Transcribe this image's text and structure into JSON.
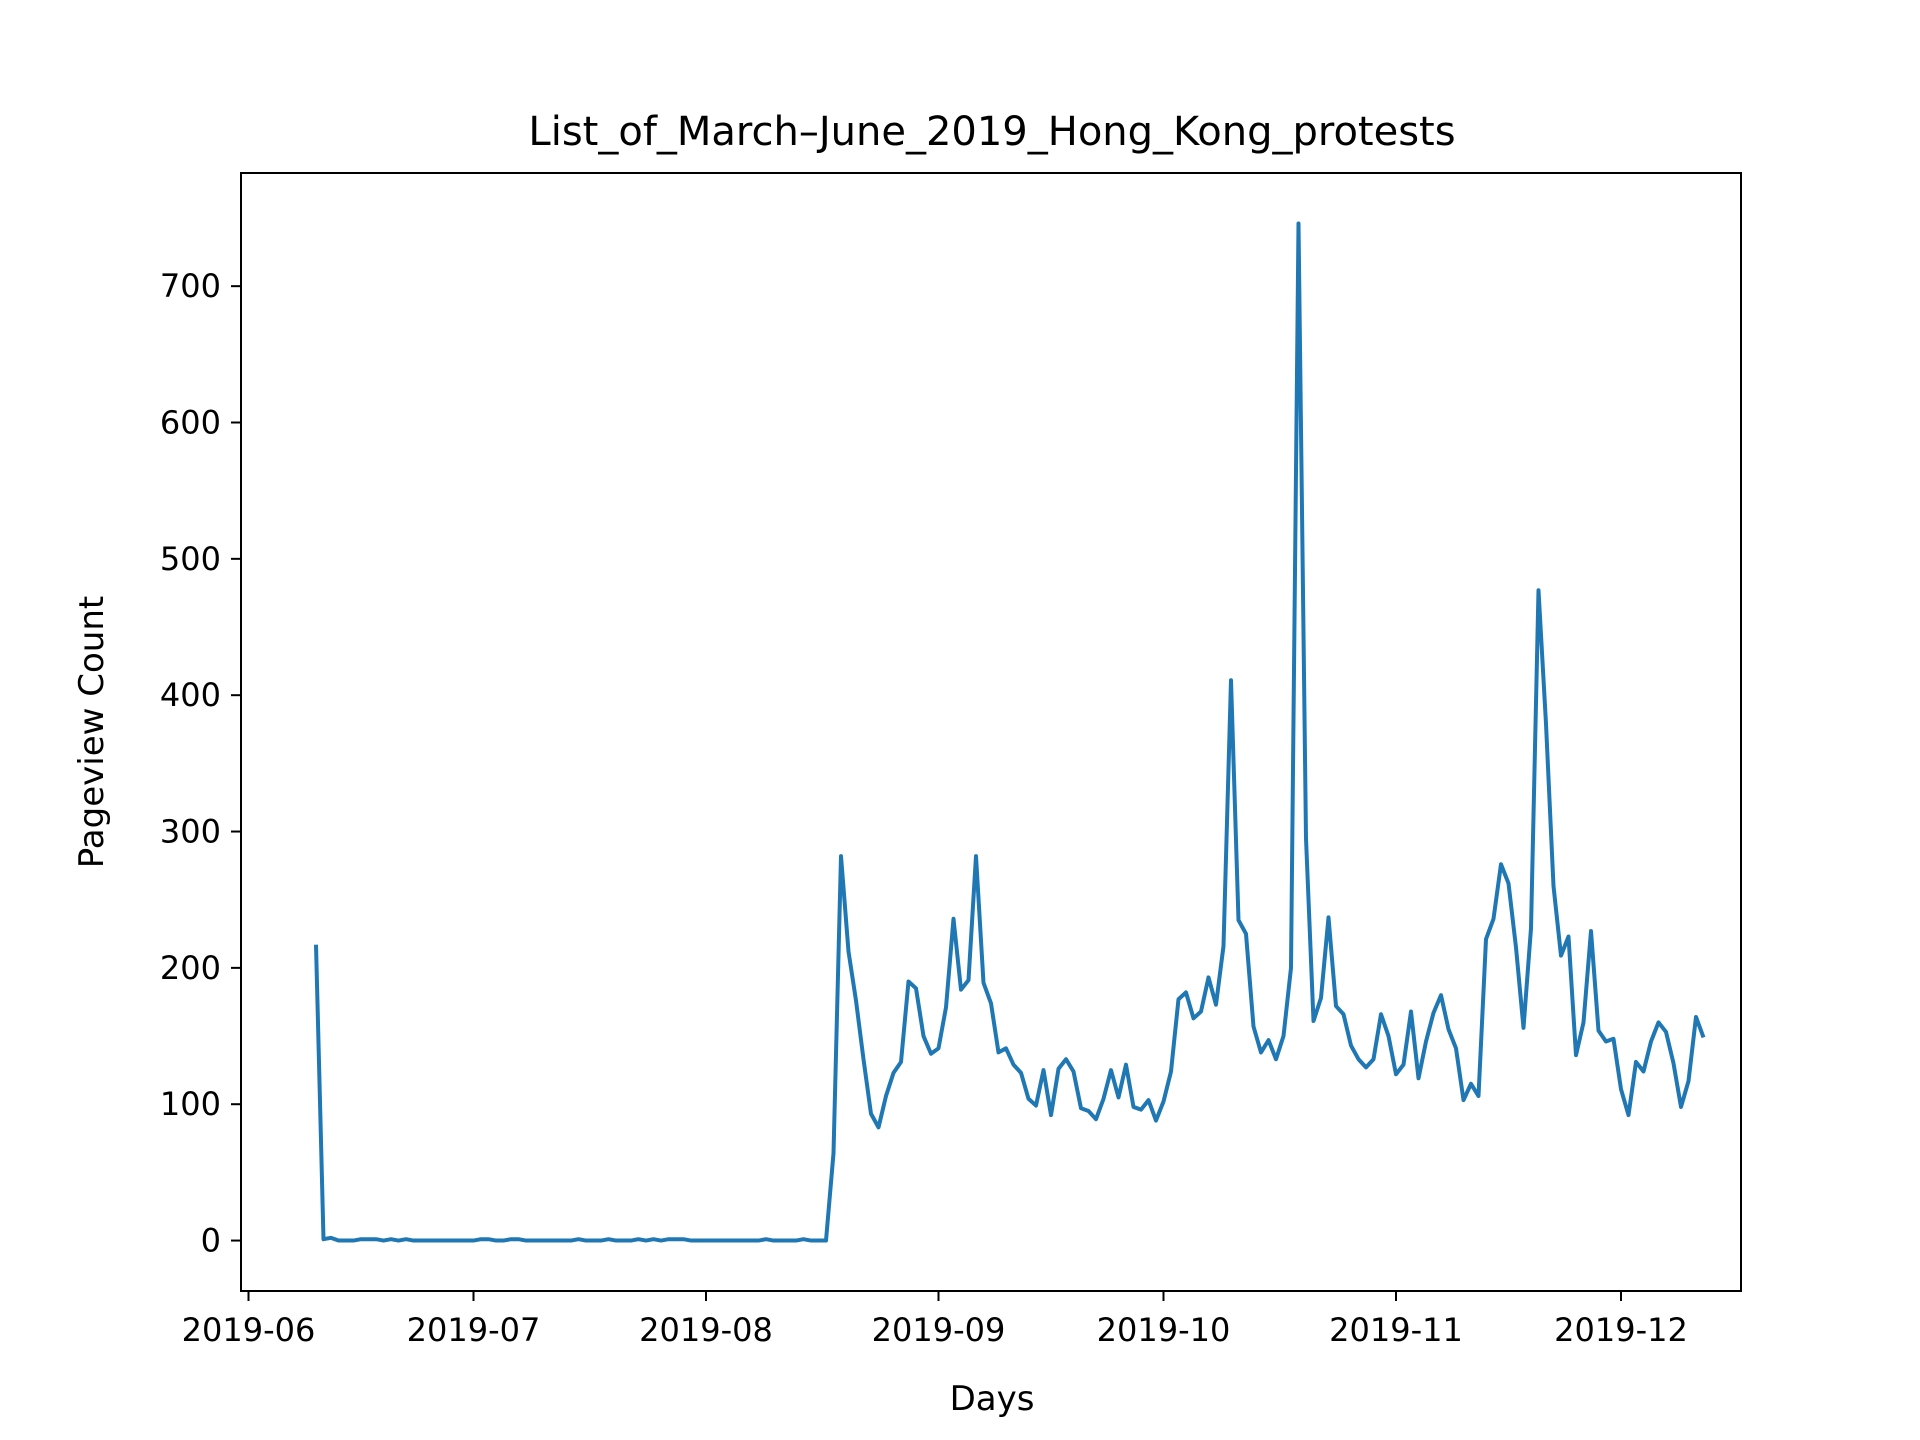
{
  "chart_data": {
    "type": "line",
    "title": "List_of_March–June_2019_Hong_Kong_protests",
    "xlabel": "Days",
    "ylabel": "Pageview Count",
    "x_ticks": [
      "2019-06",
      "2019-07",
      "2019-08",
      "2019-09",
      "2019-10",
      "2019-11",
      "2019-12"
    ],
    "y_ticks": [
      0,
      100,
      200,
      300,
      400,
      500,
      600,
      700
    ],
    "xlim": [
      "2019-05-31",
      "2019-12-17"
    ],
    "ylim": [
      -37,
      783
    ],
    "grid": false,
    "line_color": "#1f77b4",
    "series": [
      {
        "x_start": "2019-06-10",
        "x_step_days": 1,
        "values": [
          217,
          1,
          2,
          0,
          0,
          0,
          1,
          1,
          1,
          0,
          1,
          0,
          1,
          0,
          0,
          0,
          0,
          0,
          0,
          0,
          0,
          0,
          1,
          1,
          0,
          0,
          1,
          1,
          0,
          0,
          0,
          0,
          0,
          0,
          0,
          1,
          0,
          0,
          0,
          1,
          0,
          0,
          0,
          1,
          0,
          1,
          0,
          1,
          1,
          1,
          0,
          0,
          0,
          0,
          0,
          0,
          0,
          0,
          0,
          0,
          1,
          0,
          0,
          0,
          0,
          1,
          0,
          0,
          0,
          64,
          282,
          212,
          176,
          133,
          93,
          83,
          106,
          123,
          131,
          190,
          185,
          150,
          137,
          141,
          171,
          236,
          184,
          191,
          282,
          189,
          174,
          138,
          141,
          129,
          123,
          104,
          99,
          125,
          92,
          126,
          133,
          124,
          97,
          95,
          89,
          104,
          125,
          105,
          129,
          98,
          96,
          103,
          88,
          102,
          124,
          177,
          182,
          163,
          168,
          193,
          173,
          216,
          411,
          235,
          225,
          157,
          138,
          147,
          133,
          150,
          200,
          746,
          295,
          161,
          178,
          237,
          172,
          166,
          143,
          133,
          127,
          133,
          166,
          150,
          122,
          129,
          168,
          119,
          146,
          167,
          180,
          155,
          141,
          103,
          115,
          106,
          221,
          236,
          276,
          262,
          215,
          156,
          229,
          477,
          379,
          260,
          209,
          223,
          136,
          160,
          227,
          154,
          146,
          148,
          111,
          92,
          131,
          124,
          146,
          160,
          153,
          130,
          98,
          117,
          164,
          149
        ]
      }
    ]
  }
}
